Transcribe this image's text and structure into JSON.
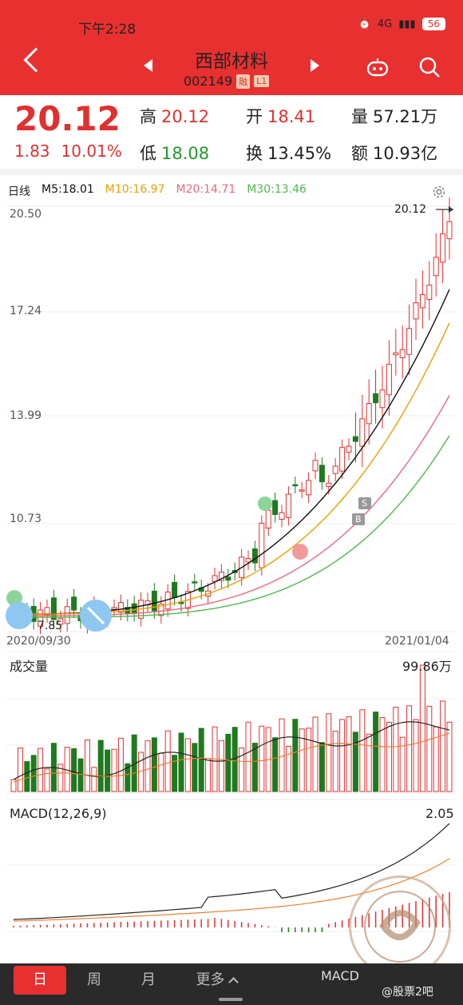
{
  "status_bar": {
    "time": "下午2:28",
    "network": "4G",
    "battery": "56"
  },
  "header": {
    "title": "西部材料",
    "code": "002149",
    "tag1": "融",
    "tag2": "L1"
  },
  "quote": {
    "price": "20.12",
    "change": "1.83",
    "change_pct": "10.01%",
    "high_label": "高",
    "high": "20.12",
    "open_label": "开",
    "open": "18.41",
    "volume_label": "量",
    "volume": "57.21万",
    "low_label": "低",
    "low": "18.08",
    "turnover_label": "换",
    "turnover": "13.45%",
    "amount_label": "额",
    "amount": "10.93亿"
  },
  "kline": {
    "period": "日线",
    "ma5": "M5:18.01",
    "ma10": "M10:16.97",
    "ma20": "M20:14.71",
    "ma30": "M30:13.46",
    "y_ticks": [
      "20.50",
      "17.24",
      "13.99",
      "10.73"
    ],
    "last_label": "20.12",
    "low_label": "7.85",
    "start_date": "2020/09/30",
    "end_date": "2021/01/04",
    "markers": {
      "s": "S",
      "b": "B"
    }
  },
  "volume": {
    "label": "成交量",
    "max": "99.86万"
  },
  "macd": {
    "label": "MACD(12,26,9)",
    "max": "2.05"
  },
  "bottom": {
    "day": "日",
    "week": "周",
    "month": "月",
    "more": "更多",
    "indicator": "MACD"
  },
  "watermark": {
    "text1": "第",
    "text2": "二",
    "text3": "私",
    "text4": "募"
  },
  "credit": "@股票2吧",
  "colors": {
    "up": "#e03030",
    "down": "#1f7a1f",
    "ma5": "#111111",
    "ma10": "#e6a200",
    "ma20": "#e66a80",
    "ma30": "#4fb84f",
    "header": "#e93030"
  },
  "chart_data": {
    "type": "line",
    "x": [
      "2020/09/30",
      "2021/01/04"
    ],
    "series": [
      {
        "name": "M5",
        "values": [
          7.9,
          18.01
        ]
      },
      {
        "name": "M10",
        "values": [
          7.9,
          16.97
        ]
      },
      {
        "name": "M20",
        "values": [
          7.85,
          14.71
        ]
      },
      {
        "name": "M30",
        "values": [
          7.8,
          13.46
        ]
      }
    ],
    "ylim": [
      7.85,
      20.5
    ]
  }
}
